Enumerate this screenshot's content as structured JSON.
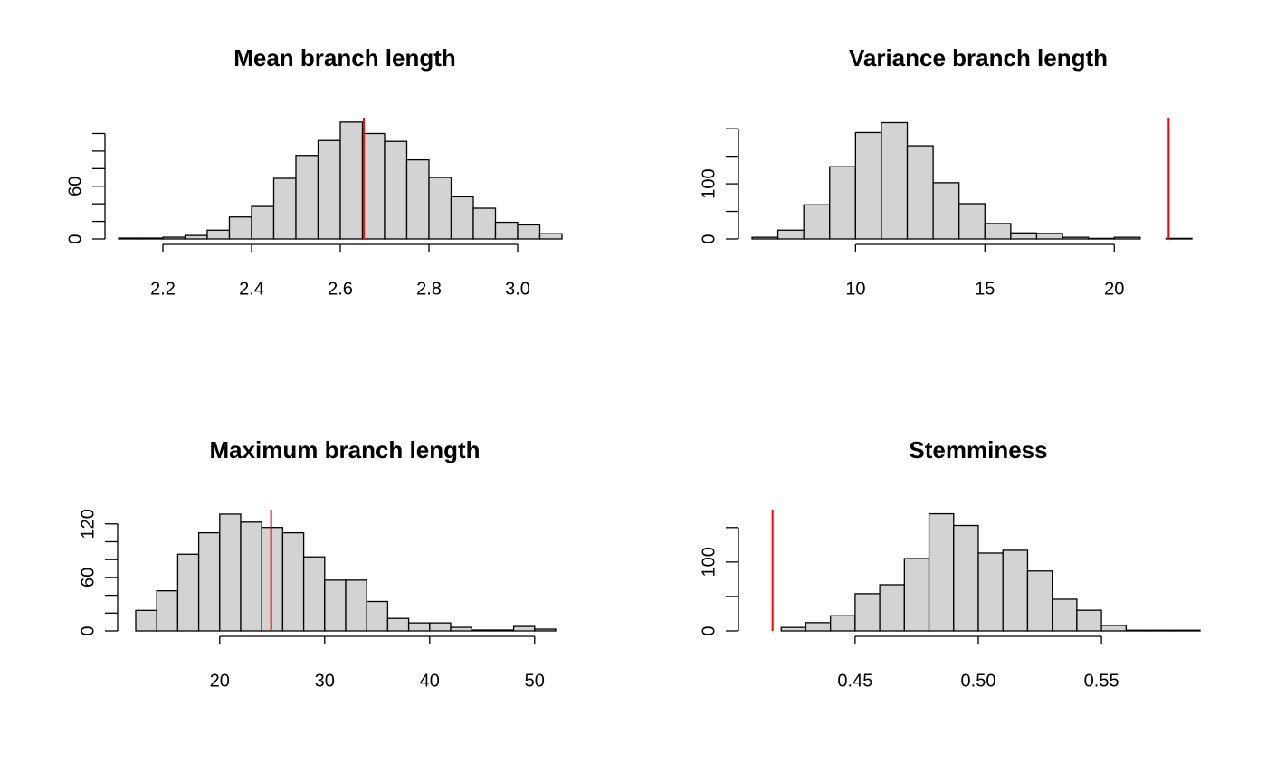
{
  "chart_data": [
    {
      "type": "histogram",
      "title": "Mean branch length",
      "bins": [
        2.1,
        2.15,
        2.2,
        2.25,
        2.3,
        2.35,
        2.4,
        2.45,
        2.5,
        2.55,
        2.6,
        2.65,
        2.7,
        2.75,
        2.8,
        2.85,
        2.9,
        2.95,
        3.0,
        3.05,
        3.1
      ],
      "values": [
        1,
        1,
        2,
        4,
        10,
        25,
        37,
        69,
        95,
        112,
        133,
        120,
        111,
        90,
        70,
        48,
        35,
        19,
        16,
        6
      ],
      "color": "#d3d3d3",
      "observed": 2.653,
      "observed_color": "#ff0000",
      "xlim": [
        2.1,
        3.1
      ],
      "xticks": [
        2.2,
        2.4,
        2.6,
        2.8,
        {
          "value": 3,
          "label": "3.0"
        }
      ],
      "ylim": [
        0,
        138
      ],
      "yticks": [
        0,
        60
      ],
      "yminorticks": [
        20,
        40,
        80,
        100,
        120
      ]
    },
    {
      "type": "histogram",
      "title": "Variance branch length",
      "bins": [
        6,
        7,
        8,
        9,
        10,
        11,
        12,
        13,
        14,
        15,
        16,
        17,
        18,
        19,
        20,
        21,
        22,
        23
      ],
      "values": [
        3,
        16,
        62,
        131,
        193,
        211,
        169,
        102,
        64,
        28,
        11,
        10,
        3,
        1,
        3,
        0,
        1
      ],
      "color": "#d3d3d3",
      "observed": 22.1,
      "observed_color": "#ff0000",
      "xlim": [
        6,
        23
      ],
      "xticks": [
        10,
        15,
        20
      ],
      "ylim": [
        0,
        220
      ],
      "yticks": [
        0,
        100
      ],
      "yminorticks": [
        50,
        150,
        200
      ]
    },
    {
      "type": "histogram",
      "title": "Maximum branch length",
      "bins": [
        12,
        14,
        16,
        18,
        20,
        22,
        24,
        26,
        28,
        30,
        32,
        34,
        36,
        38,
        40,
        42,
        44,
        46,
        48,
        50,
        52
      ],
      "values": [
        23,
        45,
        86,
        110,
        131,
        122,
        116,
        110,
        83,
        57,
        57,
        33,
        14,
        9,
        9,
        4,
        1,
        1,
        5,
        2
      ],
      "color": "#d3d3d3",
      "observed": 24.9,
      "observed_color": "#ff0000",
      "xlim": [
        12,
        52
      ],
      "xticks": [
        20,
        30,
        40,
        50
      ],
      "ylim": [
        0,
        136
      ],
      "yticks": [
        0,
        60,
        120
      ],
      "yminorticks": [
        20,
        40,
        80,
        100
      ]
    },
    {
      "type": "histogram",
      "title": "Stemminess",
      "bins": [
        0.41,
        0.42,
        0.43,
        0.44,
        0.45,
        0.46,
        0.47,
        0.48,
        0.49,
        0.5,
        0.51,
        0.52,
        0.53,
        0.54,
        0.55,
        0.56,
        0.57,
        0.58,
        0.59
      ],
      "values": [
        0,
        5,
        12,
        22,
        54,
        67,
        105,
        170,
        153,
        113,
        117,
        87,
        46,
        30,
        8,
        1,
        1,
        1
      ],
      "color": "#d3d3d3",
      "observed": 0.4165,
      "observed_color": "#ff0000",
      "xlim": [
        0.41,
        0.59
      ],
      "xticks": [
        0.45,
        {
          "value": 0.5,
          "label": "0.50"
        },
        0.55
      ],
      "ylim": [
        0,
        176
      ],
      "yticks": [
        0,
        100
      ],
      "yminorticks": [
        50,
        150
      ]
    }
  ]
}
